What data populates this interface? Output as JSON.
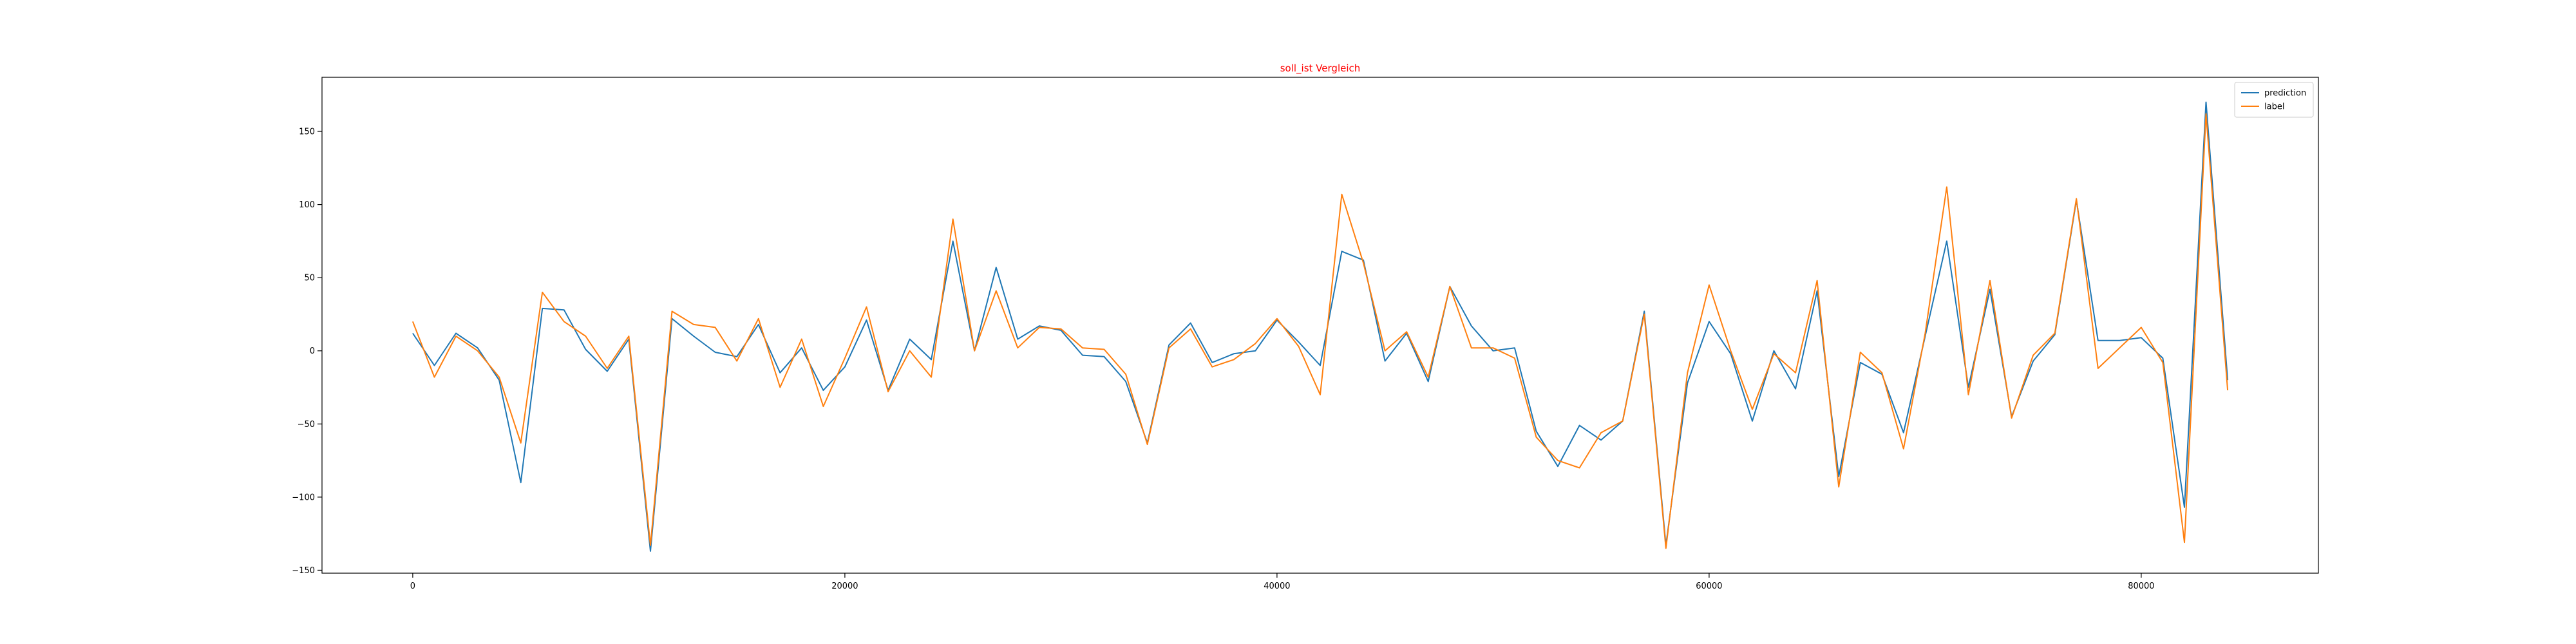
{
  "chart_data": {
    "type": "line",
    "title": "soll_ist Vergleich",
    "title_color": "#ff0000",
    "xlabel": "",
    "ylabel": "",
    "xlim": [
      -4200,
      88200
    ],
    "ylim": [
      -152,
      187
    ],
    "xticks": [
      0,
      20000,
      40000,
      60000,
      80000
    ],
    "yticks": [
      -150,
      -100,
      -50,
      0,
      50,
      100,
      150
    ],
    "grid": false,
    "legend_position": "top-right",
    "x": [
      0,
      1000,
      2000,
      3000,
      4000,
      5000,
      6000,
      7000,
      8000,
      9000,
      10000,
      11000,
      12000,
      13000,
      14000,
      15000,
      16000,
      17000,
      18000,
      19000,
      20000,
      21000,
      22000,
      23000,
      24000,
      25000,
      26000,
      27000,
      28000,
      29000,
      30000,
      31000,
      32000,
      33000,
      34000,
      35000,
      36000,
      37000,
      38000,
      39000,
      40000,
      41000,
      42000,
      43000,
      44000,
      45000,
      46000,
      47000,
      48000,
      49000,
      50000,
      51000,
      52000,
      53000,
      54000,
      55000,
      56000,
      57000,
      58000,
      59000,
      60000,
      61000,
      62000,
      63000,
      64000,
      65000,
      66000,
      67000,
      68000,
      69000,
      70000,
      71000,
      72000,
      73000,
      74000,
      75000,
      76000,
      77000,
      78000,
      79000,
      80000,
      81000,
      82000,
      83000,
      84000
    ],
    "series": [
      {
        "name": "prediction",
        "color": "#1f77b4",
        "values": [
          12,
          -10,
          12,
          2,
          -20,
          -90,
          29,
          28,
          1,
          -14,
          8,
          -137,
          22,
          10,
          -1,
          -4,
          18,
          -15,
          2,
          -27,
          -11,
          21,
          -27,
          8,
          -6,
          75,
          0,
          57,
          8,
          17,
          14,
          -3,
          -4,
          -21,
          -63,
          4,
          19,
          -8,
          -2,
          0,
          21,
          6,
          -10,
          68,
          62,
          -7,
          12,
          -21,
          44,
          17,
          0,
          2,
          -55,
          -79,
          -51,
          -61,
          -48,
          27,
          -133,
          -22,
          20,
          -2,
          -48,
          0,
          -26,
          41,
          -86,
          -8,
          -16,
          -56,
          10,
          75,
          -25,
          42,
          -45,
          -7,
          11,
          103,
          7,
          7,
          9,
          -5,
          -107,
          170,
          -20
        ]
      },
      {
        "name": "label",
        "color": "#ff7f0e",
        "values": [
          20,
          -18,
          10,
          0,
          -18,
          -63,
          40,
          20,
          10,
          -12,
          10,
          -133,
          27,
          18,
          16,
          -7,
          22,
          -25,
          8,
          -38,
          -5,
          30,
          -28,
          0,
          -18,
          90,
          0,
          41,
          2,
          16,
          15,
          2,
          1,
          -16,
          -64,
          2,
          15,
          -11,
          -6,
          5,
          22,
          3,
          -30,
          107,
          60,
          0,
          13,
          -18,
          44,
          2,
          2,
          -5,
          -59,
          -75,
          -80,
          -56,
          -48,
          25,
          -135,
          -15,
          45,
          0,
          -40,
          -2,
          -15,
          48,
          -93,
          -1,
          -15,
          -67,
          12,
          112,
          -30,
          48,
          -46,
          -3,
          12,
          104,
          -12,
          2,
          16,
          -8,
          -131,
          162,
          -27
        ]
      }
    ]
  }
}
